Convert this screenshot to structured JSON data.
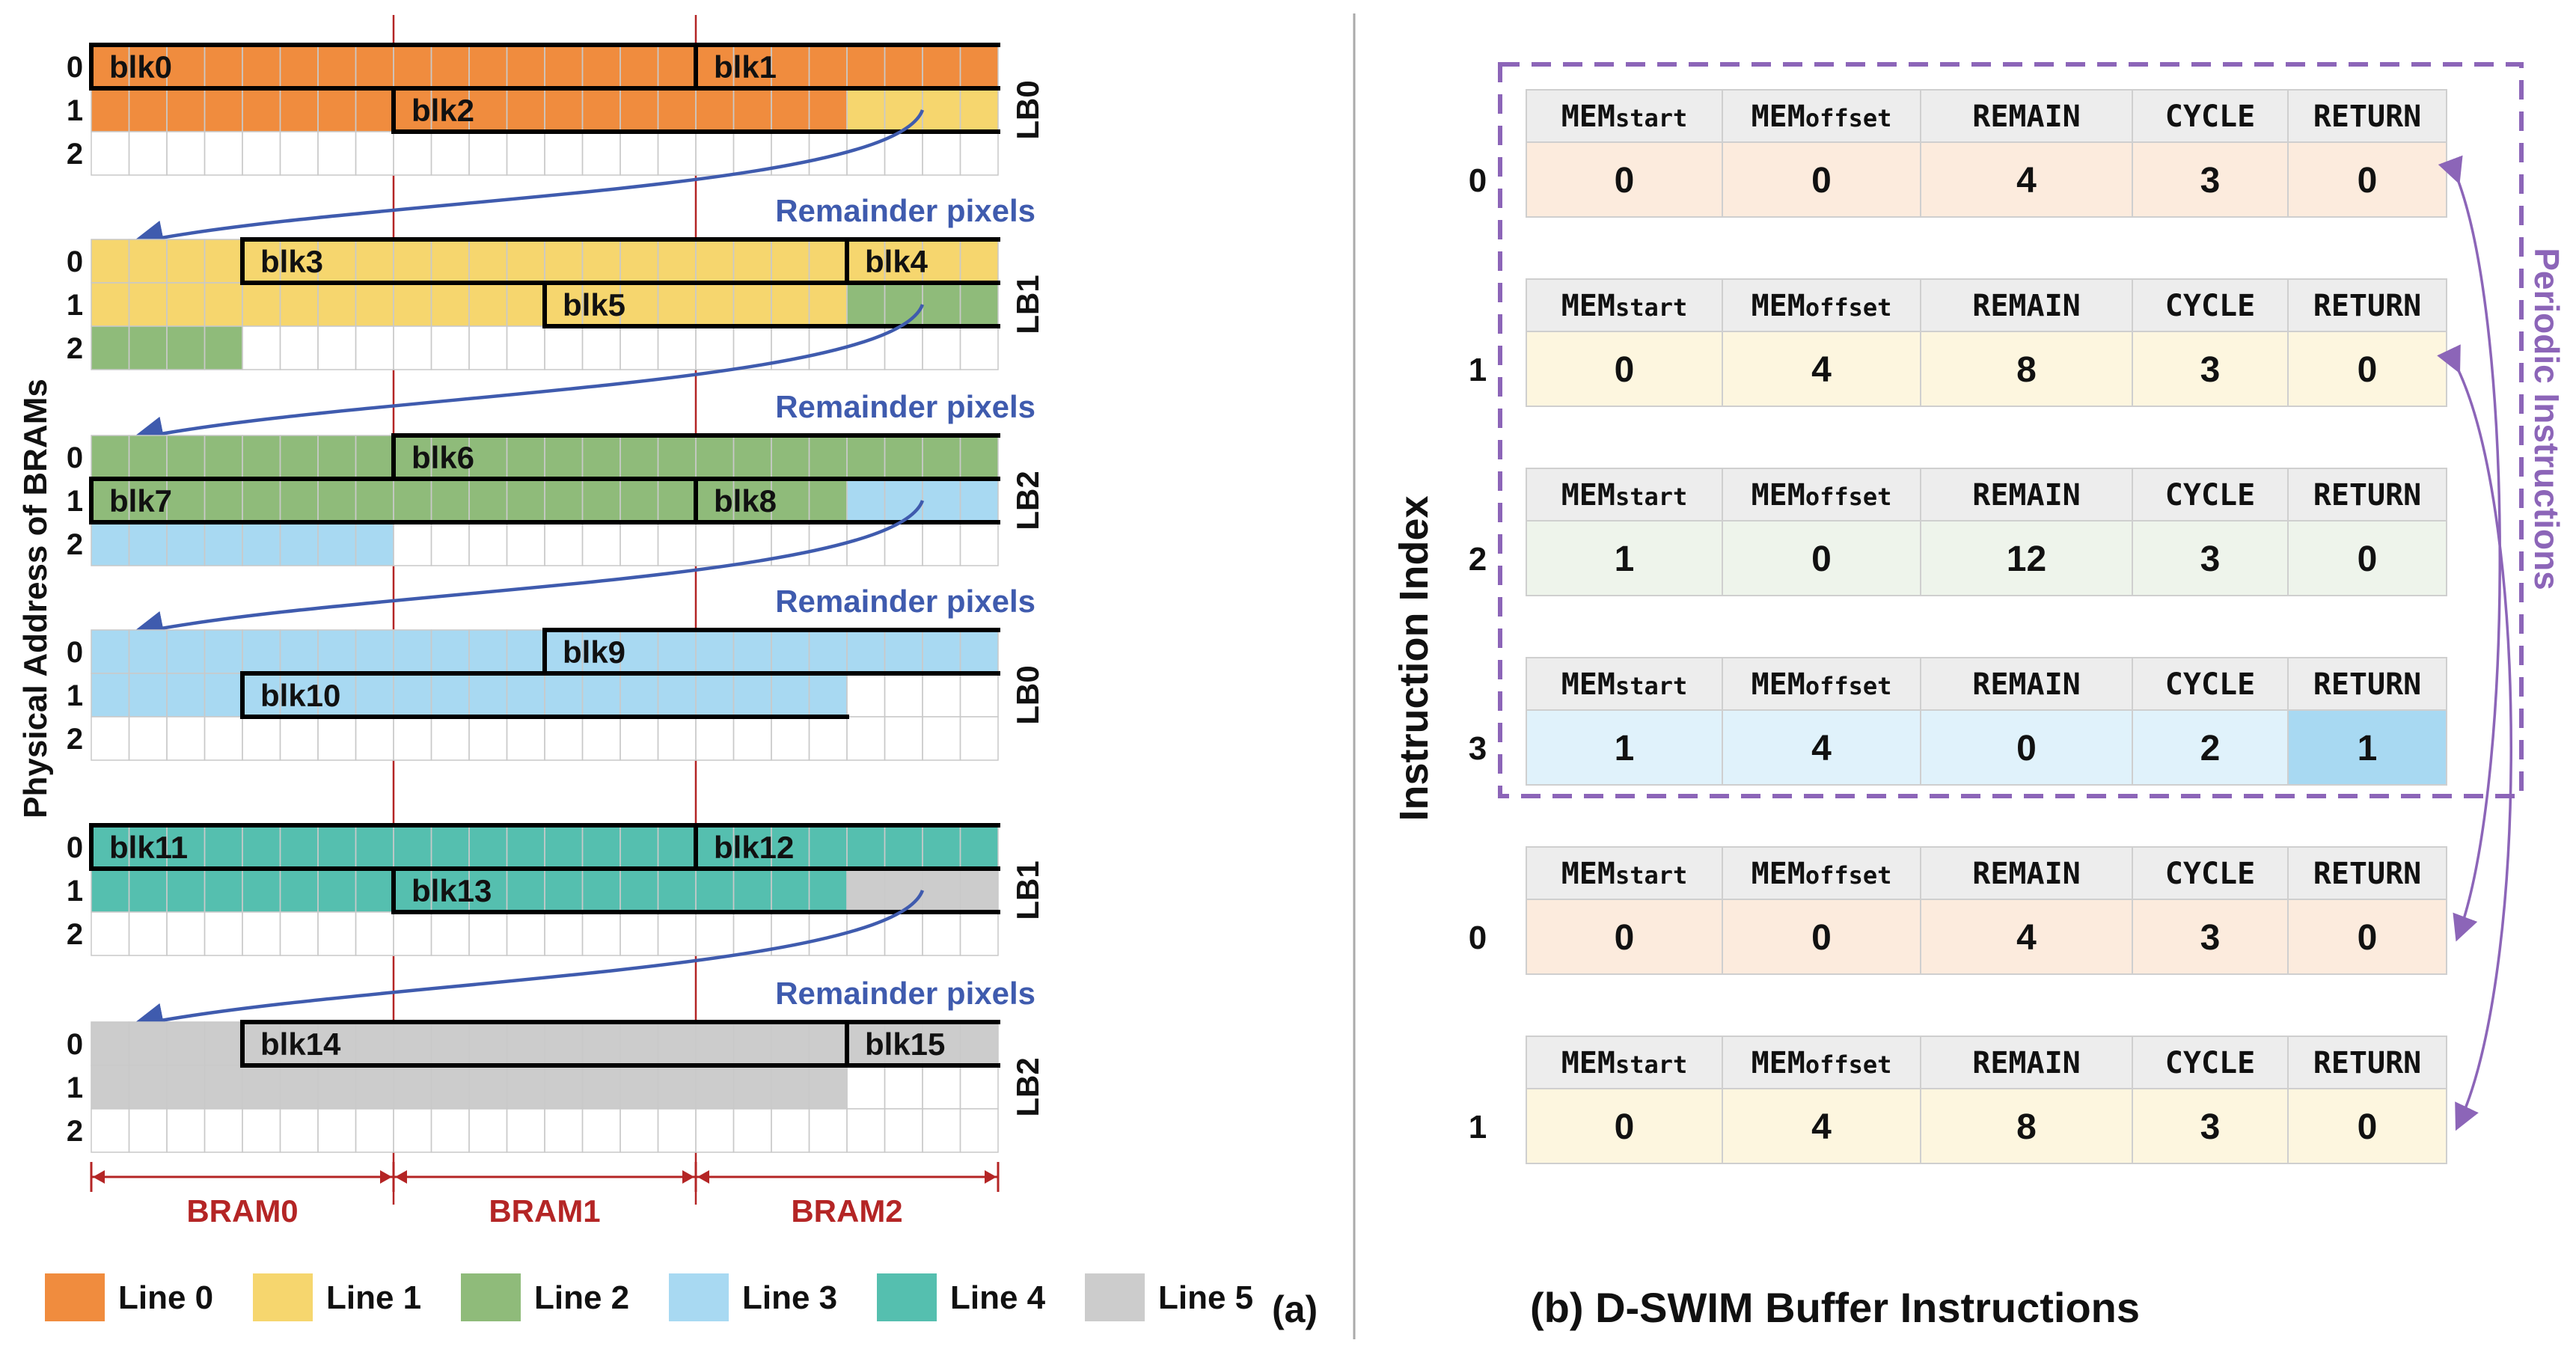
{
  "colors": {
    "line0": "#F08C3E",
    "line1": "#F6D66E",
    "line2": "#8FBB7A",
    "line3": "#A8D9F2",
    "line4": "#55BFAF",
    "line5": "#CCCCCC",
    "arrow": "#3F5BAE",
    "bram": "#B42525",
    "purple": "#8C65B8",
    "hdr": "#EDEDED"
  },
  "panel_a": {
    "y_axis_label": "Physical Address of BRAMs",
    "caption": "(a)",
    "remainder_label": "Remainder pixels",
    "bram_labels": [
      "BRAM0",
      "BRAM1",
      "BRAM2"
    ],
    "addr_labels": [
      "0",
      "1",
      "2"
    ],
    "groups": [
      {
        "lb": "LB0",
        "rows": [
          [
            {
              "s": 0,
              "e": 24,
              "c": "line0"
            }
          ],
          [
            {
              "s": 0,
              "e": 20,
              "c": "line0"
            },
            {
              "s": 20,
              "e": 24,
              "c": "line1"
            }
          ],
          []
        ],
        "blocks": [
          {
            "label": "blk0",
            "row": 0,
            "s": 0,
            "e": 16
          },
          {
            "label": "blk1",
            "row": 0,
            "s": 16,
            "e": 24
          },
          {
            "label": "blk2",
            "row": 1,
            "s": 8,
            "e": 24
          }
        ],
        "remainder": true
      },
      {
        "lb": "LB1",
        "rows": [
          [
            {
              "s": 0,
              "e": 24,
              "c": "line1"
            }
          ],
          [
            {
              "s": 0,
              "e": 20,
              "c": "line1"
            },
            {
              "s": 20,
              "e": 24,
              "c": "line2"
            }
          ],
          [
            {
              "s": 0,
              "e": 4,
              "c": "line2"
            }
          ]
        ],
        "blocks": [
          {
            "label": "blk3",
            "row": 0,
            "s": 4,
            "e": 20
          },
          {
            "label": "blk4",
            "row": 0,
            "s": 20,
            "e": 24
          },
          {
            "label": "blk5",
            "row": 1,
            "s": 12,
            "e": 24
          }
        ],
        "remainder": true
      },
      {
        "lb": "LB2",
        "rows": [
          [
            {
              "s": 0,
              "e": 24,
              "c": "line2"
            }
          ],
          [
            {
              "s": 0,
              "e": 20,
              "c": "line2"
            },
            {
              "s": 20,
              "e": 24,
              "c": "line3"
            }
          ],
          [
            {
              "s": 0,
              "e": 8,
              "c": "line3"
            }
          ]
        ],
        "blocks": [
          {
            "label": "blk6",
            "row": 0,
            "s": 8,
            "e": 24
          },
          {
            "label": "blk7",
            "row": 1,
            "s": 0,
            "e": 16
          },
          {
            "label": "blk8",
            "row": 1,
            "s": 16,
            "e": 24
          }
        ],
        "remainder": true
      },
      {
        "lb": "LB0",
        "rows": [
          [
            {
              "s": 0,
              "e": 24,
              "c": "line3"
            }
          ],
          [
            {
              "s": 0,
              "e": 20,
              "c": "line3"
            }
          ],
          []
        ],
        "blocks": [
          {
            "label": "blk9",
            "row": 0,
            "s": 12,
            "e": 24
          },
          {
            "label": "blk10",
            "row": 1,
            "s": 4,
            "e": 20
          }
        ],
        "remainder": false
      },
      {
        "lb": "LB1",
        "rows": [
          [
            {
              "s": 0,
              "e": 24,
              "c": "line4"
            }
          ],
          [
            {
              "s": 0,
              "e": 20,
              "c": "line4"
            },
            {
              "s": 20,
              "e": 24,
              "c": "line5"
            }
          ],
          []
        ],
        "blocks": [
          {
            "label": "blk11",
            "row": 0,
            "s": 0,
            "e": 16
          },
          {
            "label": "blk12",
            "row": 0,
            "s": 16,
            "e": 24
          },
          {
            "label": "blk13",
            "row": 1,
            "s": 8,
            "e": 24
          }
        ],
        "remainder": true
      },
      {
        "lb": "LB2",
        "rows": [
          [
            {
              "s": 0,
              "e": 24,
              "c": "line5"
            }
          ],
          [
            {
              "s": 0,
              "e": 20,
              "c": "line5"
            }
          ],
          []
        ],
        "blocks": [
          {
            "label": "blk14",
            "row": 0,
            "s": 4,
            "e": 20
          },
          {
            "label": "blk15",
            "row": 0,
            "s": 20,
            "e": 24
          }
        ],
        "remainder": false
      }
    ],
    "legend": [
      {
        "label": "Line 0",
        "c": "line0"
      },
      {
        "label": "Line 1",
        "c": "line1"
      },
      {
        "label": "Line 2",
        "c": "line2"
      },
      {
        "label": "Line 3",
        "c": "line3"
      },
      {
        "label": "Line 4",
        "c": "line4"
      },
      {
        "label": "Line 5",
        "c": "line5"
      }
    ]
  },
  "panel_b": {
    "title": "(b) D-SWIM Buffer Instructions",
    "y_axis_label": "Instruction Index",
    "periodic_label": "Periodic Instructions",
    "header": [
      {
        "main": "MEM",
        "sub": "start"
      },
      {
        "main": "MEM",
        "sub": "offset"
      },
      {
        "main": "REMAIN",
        "sub": ""
      },
      {
        "main": "CYCLE",
        "sub": ""
      },
      {
        "main": "RETURN",
        "sub": ""
      }
    ],
    "instructions": [
      {
        "index": "0",
        "values": [
          "0",
          "0",
          "4",
          "3",
          "0"
        ],
        "c": "#FCEBDD",
        "hl": -1
      },
      {
        "index": "1",
        "values": [
          "0",
          "4",
          "8",
          "3",
          "0"
        ],
        "c": "#FDF6DF",
        "hl": -1
      },
      {
        "index": "2",
        "values": [
          "1",
          "0",
          "12",
          "3",
          "0"
        ],
        "c": "#EEF4EB",
        "hl": -1
      },
      {
        "index": "3",
        "values": [
          "1",
          "4",
          "0",
          "2",
          "1"
        ],
        "c": "#E0F2FB",
        "hl": 4
      },
      {
        "index": "0",
        "values": [
          "0",
          "0",
          "4",
          "3",
          "0"
        ],
        "c": "#FCEBDD",
        "hl": -1
      },
      {
        "index": "1",
        "values": [
          "0",
          "4",
          "8",
          "3",
          "0"
        ],
        "c": "#FDF6DF",
        "hl": -1
      }
    ]
  }
}
